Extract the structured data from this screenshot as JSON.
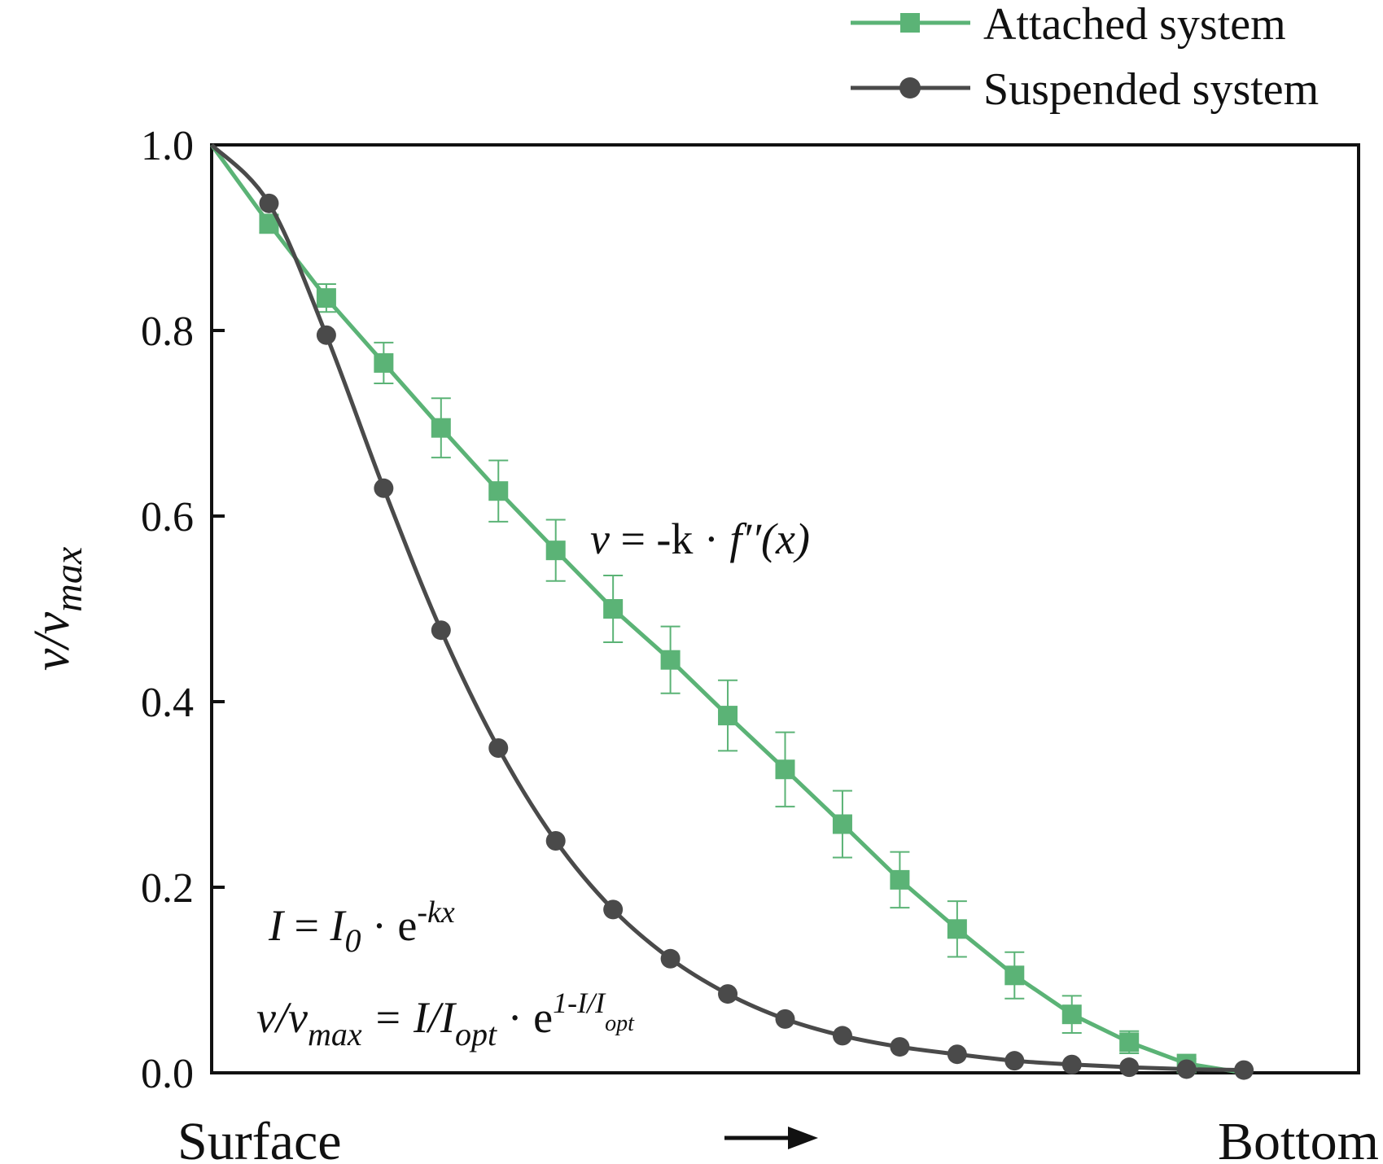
{
  "chart_data": {
    "type": "line",
    "ylabel": "v/v_max",
    "ylabel_main": "v/v",
    "ylabel_sub": "max",
    "xlabel_start": "Surface",
    "xlabel_end": "Bottom",
    "ylim": [
      0,
      1.0
    ],
    "yticks": [
      "0.0",
      "0.2",
      "0.4",
      "0.6",
      "0.8",
      "1.0"
    ],
    "ytick_values": [
      0.0,
      0.2,
      0.4,
      0.6,
      0.8,
      1.0
    ],
    "x": [
      0,
      1,
      2,
      3,
      4,
      5,
      6,
      7,
      8,
      9,
      10,
      11,
      12,
      13,
      14,
      15,
      16,
      17,
      18
    ],
    "xlim": [
      0,
      20
    ],
    "grid": false,
    "legend_position": "top-right, above plot",
    "series": [
      {
        "name": "Attached system",
        "color": "#5bb376",
        "marker": "square",
        "values": [
          1.0,
          0.915,
          0.835,
          0.765,
          0.695,
          0.627,
          0.563,
          0.5,
          0.445,
          0.385,
          0.327,
          0.268,
          0.208,
          0.155,
          0.105,
          0.063,
          0.033,
          0.01,
          0.0
        ],
        "error": [
          0,
          0.01,
          0.015,
          0.022,
          0.032,
          0.033,
          0.033,
          0.036,
          0.036,
          0.038,
          0.04,
          0.036,
          0.03,
          0.03,
          0.025,
          0.02,
          0.012,
          0.005,
          0
        ]
      },
      {
        "name": "Suspended system",
        "color": "#4a4a4a",
        "marker": "circle",
        "values": [
          1.0,
          0.937,
          0.795,
          0.63,
          0.477,
          0.35,
          0.25,
          0.176,
          0.123,
          0.085,
          0.058,
          0.04,
          0.028,
          0.02,
          0.013,
          0.009,
          0.006,
          0.004,
          0.003
        ]
      }
    ],
    "annotations": {
      "slope_formula": {
        "v": "v",
        "eq": " = -k · ",
        "f": "f′′(x)"
      },
      "light_formula": {
        "I": "I",
        "eq": " = ",
        "I0": "I",
        "sub0": "0",
        "dot_e": " · e",
        "sup": "-kx"
      },
      "rate_formula": {
        "v": "v/v",
        "sub": "max",
        "eq": " = I/I",
        "sub_opt": "opt",
        "dot_e": " · e",
        "sup": "1-I/I",
        "sup_sub": "opt"
      }
    }
  },
  "arrow_icon": "right-arrow-icon"
}
